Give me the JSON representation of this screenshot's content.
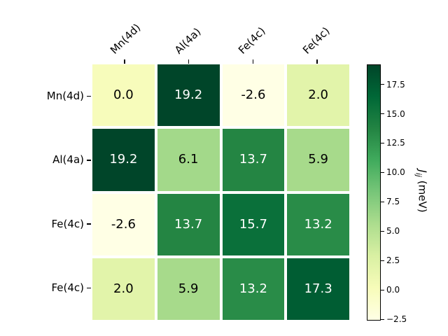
{
  "figure": {
    "background": "#ffffff"
  },
  "chart_data": {
    "type": "heatmap",
    "title": "",
    "x_categories": [
      "Mn(4d)",
      "Al(4a)",
      "Fe(4c)",
      "Fe(4c)"
    ],
    "y_categories": [
      "Mn(4d)",
      "Al(4a)",
      "Fe(4c)",
      "Fe(4c)"
    ],
    "values": [
      [
        0.0,
        19.2,
        -2.6,
        2.0
      ],
      [
        19.2,
        6.1,
        13.7,
        5.9
      ],
      [
        -2.6,
        13.7,
        15.7,
        13.2
      ],
      [
        2.0,
        5.9,
        13.2,
        17.3
      ]
    ],
    "cell_labels": [
      [
        "0.0",
        "19.2",
        "-2.6",
        "2.0"
      ],
      [
        "19.2",
        "6.1",
        "13.7",
        "5.9"
      ],
      [
        "-2.6",
        "13.7",
        "15.7",
        "13.2"
      ],
      [
        "2.0",
        "5.9",
        "13.2",
        "17.3"
      ]
    ],
    "vmin": -2.6,
    "vmax": 19.2,
    "colormap": {
      "name": "YlGn",
      "stops": [
        "#ffffe5",
        "#f7fcb9",
        "#d9f0a3",
        "#addd8e",
        "#78c679",
        "#41ab5d",
        "#238443",
        "#006837",
        "#004529"
      ]
    },
    "cell_text_light": "#ffffff",
    "cell_text_dark": "#000000",
    "grid_line_color": "#ffffff",
    "colorbar": {
      "label_main": "J",
      "label_sub": "ij",
      "label_unit": " (meV)",
      "tick_values": [
        17.5,
        15.0,
        12.5,
        10.0,
        7.5,
        5.0,
        2.5,
        0.0,
        -2.5
      ],
      "tick_labels": [
        "17.5",
        "15.0",
        "12.5",
        "10.0",
        "7.5",
        "5.0",
        "2.5",
        "0.0",
        "−2.5"
      ]
    },
    "legend_position": "right",
    "grid": false
  }
}
